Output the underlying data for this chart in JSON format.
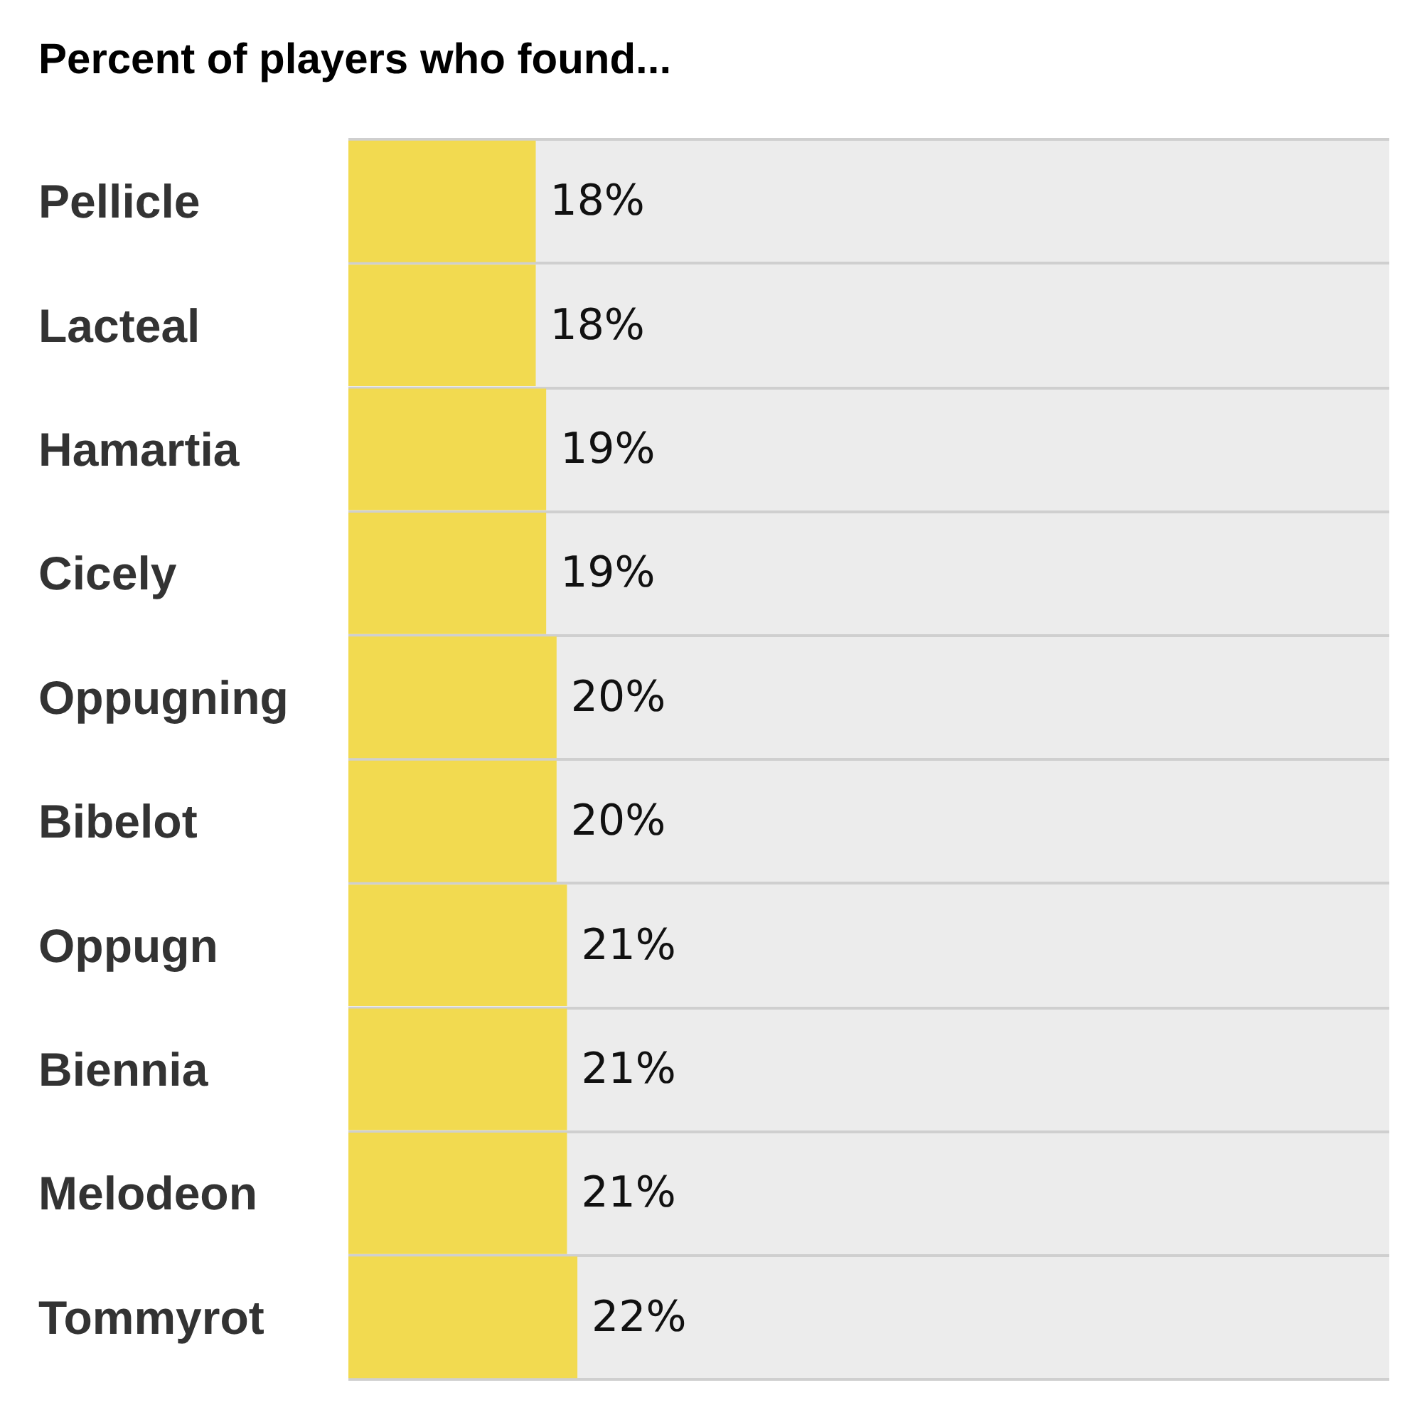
{
  "chart_data": {
    "type": "bar",
    "orientation": "horizontal",
    "title": "Percent of players who found...",
    "categories": [
      "Pellicle",
      "Lacteal",
      "Hamartia",
      "Cicely",
      "Oppugning",
      "Bibelot",
      "Oppugn",
      "Biennia",
      "Melodeon",
      "Tommyrot"
    ],
    "values": [
      18,
      18,
      19,
      19,
      20,
      20,
      21,
      21,
      21,
      22
    ],
    "value_labels": [
      "18%",
      "18%",
      "19%",
      "19%",
      "20%",
      "20%",
      "21%",
      "21%",
      "21%",
      "22%"
    ],
    "color": "#f2da50",
    "xlim": [
      0,
      100
    ],
    "grid": "y",
    "tick_labels": "y"
  }
}
